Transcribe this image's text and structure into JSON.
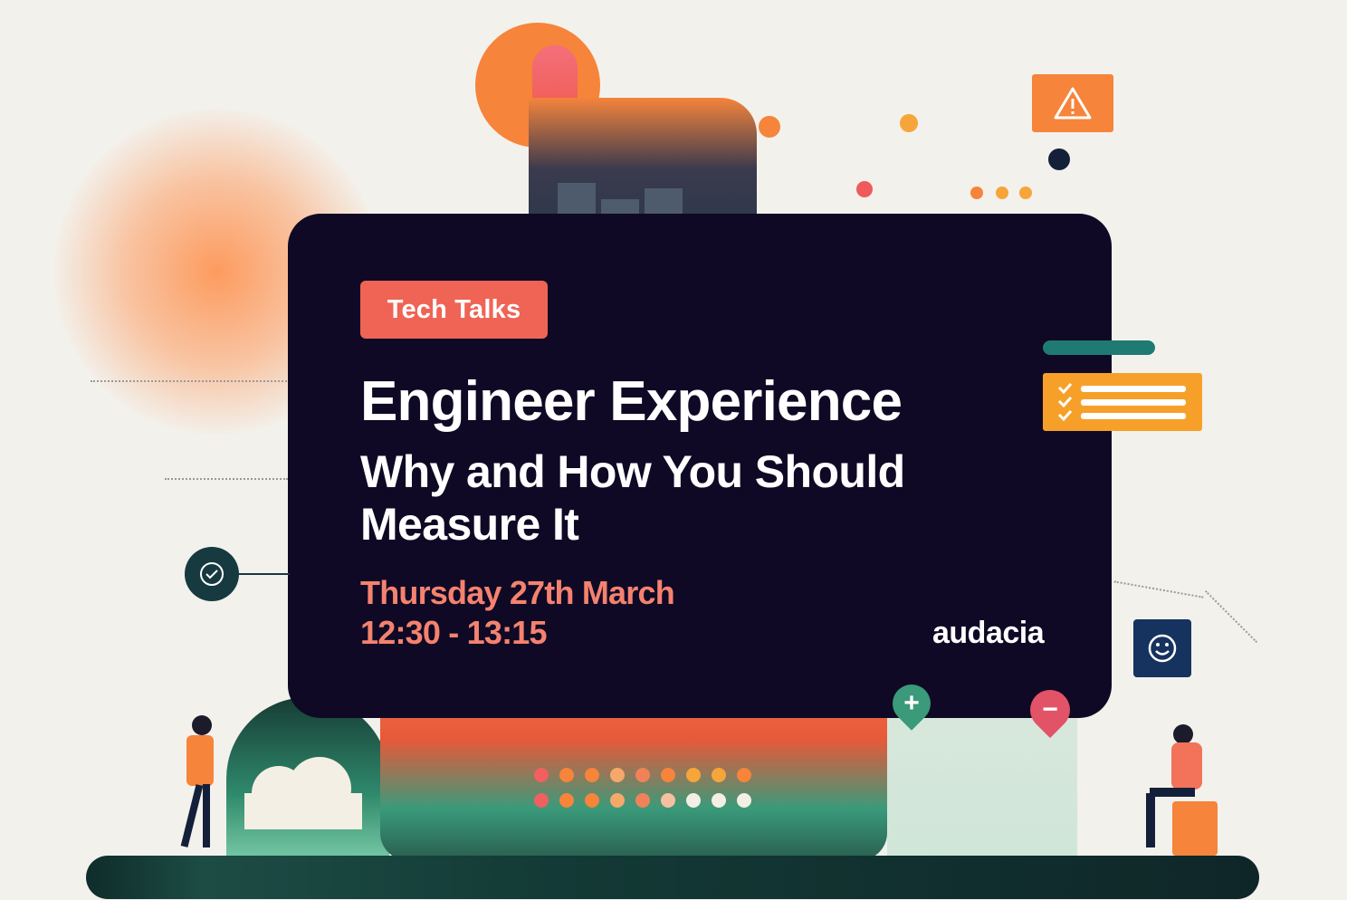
{
  "card": {
    "tag": "Tech Talks",
    "title": "Engineer Experience",
    "subtitle_line1": "Why and How You Should",
    "subtitle_line2": "Measure It",
    "date": "Thursday 27th March",
    "time": "12:30 - 13:15",
    "logo": "audacia"
  },
  "widgets": {
    "alert_icon": "warning-triangle-icon",
    "checklist_icon": "checklist-icon",
    "check_icon": "check-circle-icon",
    "smile_icon": "smiley-icon",
    "plus_pin": "+",
    "minus_pin": "−"
  },
  "colors": {
    "card_bg": "#0f0925",
    "tag_bg": "#ef6455",
    "date_text": "#f4826f",
    "accent_orange": "#f6843a"
  }
}
